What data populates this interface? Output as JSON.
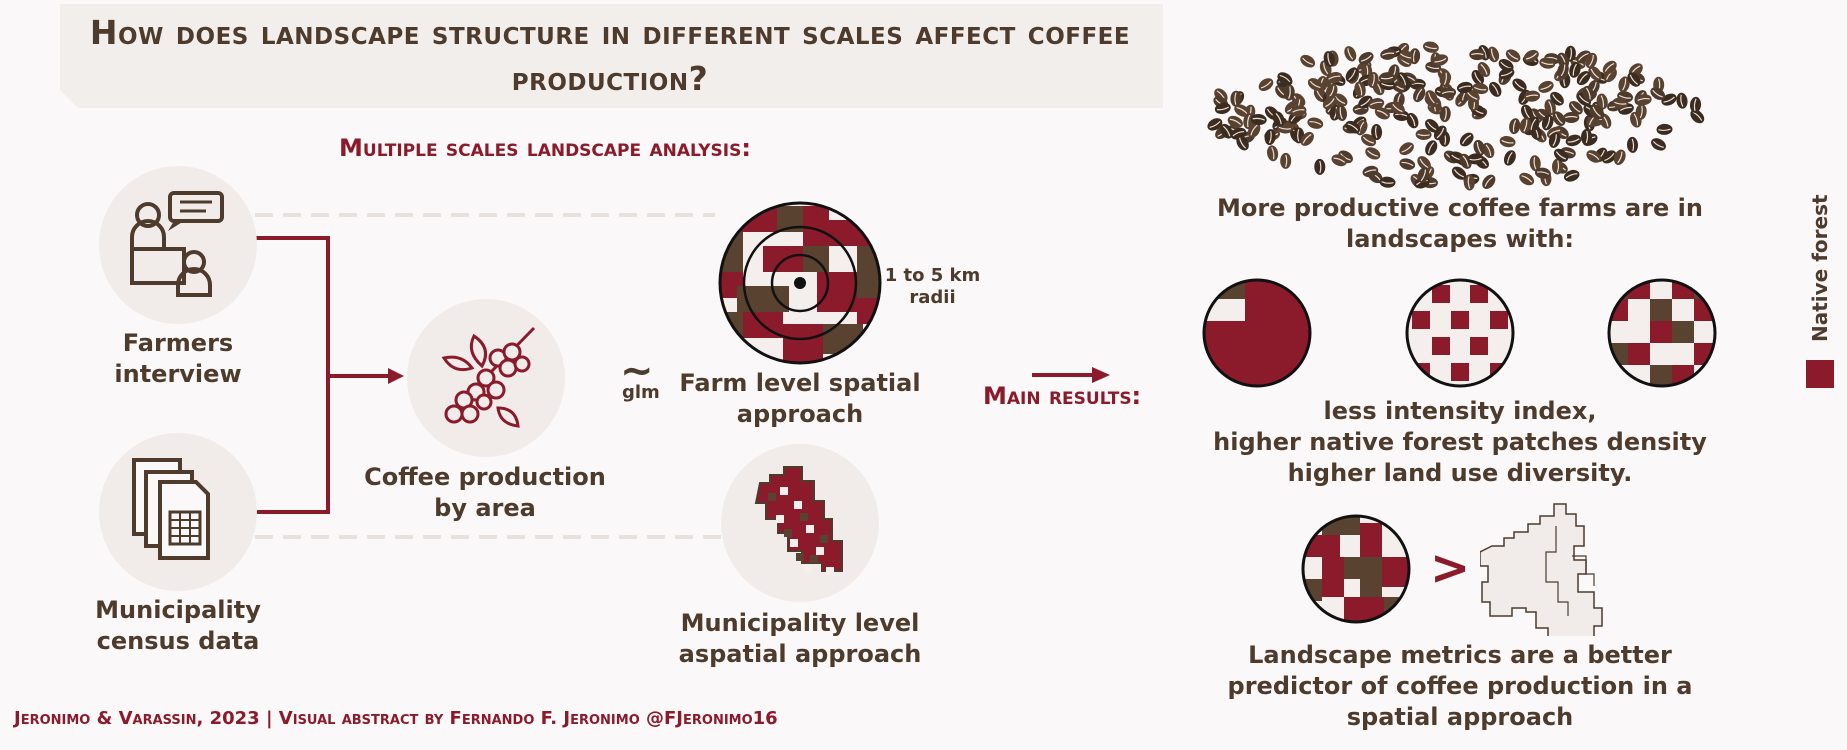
{
  "title": "How does landscape structure in different scales affect coffee production?",
  "subtitle": "Multiple scales landscape analysis:",
  "inputs": {
    "interview": "Farmers interview",
    "census": "Municipality census data"
  },
  "coffee_production": "Coffee production by area",
  "glm": {
    "symbol": "~",
    "label": "glm"
  },
  "farm_level": {
    "label": "Farm level spatial approach",
    "radii": "1 to 5 km radii"
  },
  "municipality_level": {
    "label": "Municipality level aspatial approach"
  },
  "main_results_label": "Main results:",
  "results": {
    "intro": "More productive coffee farms are in landscapes with:",
    "line1": "less intensity index,",
    "line2": "higher native forest patches density",
    "line3": "higher land use diversity.",
    "comparison_symbol": ">",
    "conclusion": "Landscape metrics are a better predictor of coffee production in a spatial approach"
  },
  "legend": {
    "label": "Native forest",
    "color": "#8b1a2b"
  },
  "footer": "Jeronimo & Varassin, 2023 | Visual abstract by Fernando F. Jeronimo @FJeronimo16",
  "colors": {
    "forest": "#8b1a2b",
    "brown": "#4e3b2c",
    "white": "#f4efec",
    "circle_bg": "#f1ecea"
  }
}
